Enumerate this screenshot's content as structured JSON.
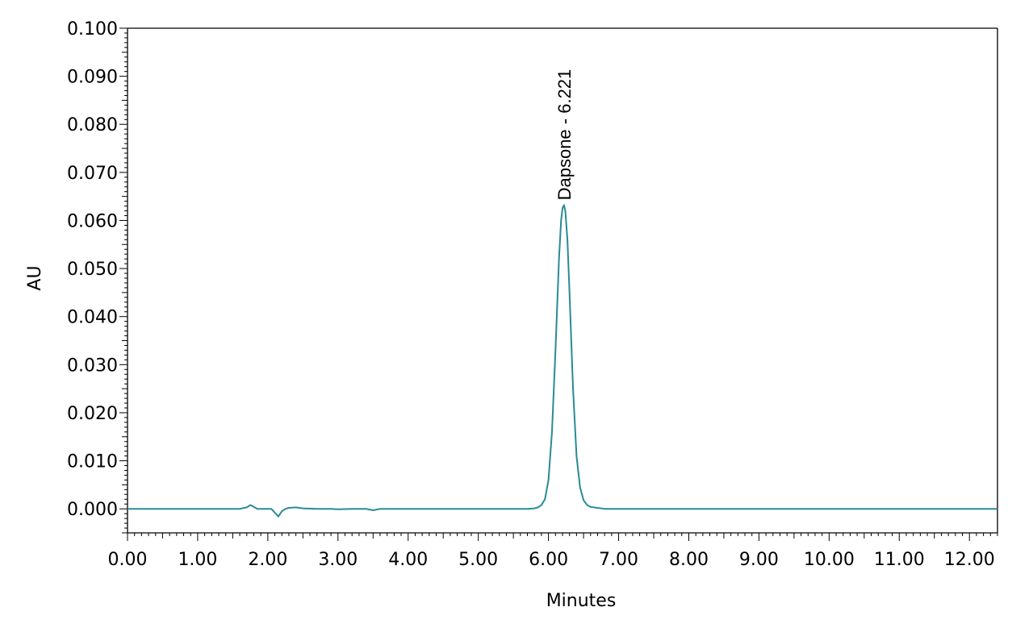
{
  "chart_data": {
    "type": "line",
    "title": "",
    "xlabel": "Minutes",
    "ylabel": "AU",
    "xlim": [
      0.0,
      12.4
    ],
    "ylim": [
      -0.005,
      0.1
    ],
    "grid": false,
    "x_ticks": [
      "0.00",
      "1.00",
      "2.00",
      "3.00",
      "4.00",
      "5.00",
      "6.00",
      "7.00",
      "8.00",
      "9.00",
      "10.00",
      "11.00",
      "12.00"
    ],
    "y_ticks": [
      "0.000",
      "0.010",
      "0.020",
      "0.030",
      "0.040",
      "0.050",
      "0.060",
      "0.070",
      "0.080",
      "0.090",
      "0.100"
    ],
    "line_color": "#2a8a96",
    "series": [
      {
        "x": [
          0.0,
          1.6,
          1.7,
          1.75,
          1.8,
          1.85,
          1.95,
          2.05,
          2.1,
          2.15,
          2.2,
          2.25,
          2.3,
          2.4,
          2.5,
          2.7,
          2.9,
          3.0,
          3.2,
          3.4,
          3.5,
          3.6,
          3.8,
          4.0,
          5.0,
          5.7,
          5.8,
          5.85,
          5.9,
          5.95,
          6.0,
          6.05,
          6.1,
          6.15,
          6.18,
          6.2,
          6.221,
          6.24,
          6.27,
          6.3,
          6.35,
          6.4,
          6.45,
          6.5,
          6.55,
          6.6,
          6.7,
          6.8,
          7.0,
          12.4
        ],
        "y": [
          0.0,
          0.0,
          0.0003,
          0.0008,
          0.0004,
          0.0,
          0.0,
          0.0,
          -0.0008,
          -0.0016,
          -0.0005,
          0.0,
          0.0002,
          0.0003,
          0.0001,
          0.0,
          0.0,
          -0.0001,
          0.0,
          0.0,
          -0.0003,
          0.0,
          0.0,
          0.0,
          0.0,
          0.0,
          0.0001,
          0.0003,
          0.0008,
          0.002,
          0.006,
          0.016,
          0.033,
          0.052,
          0.06,
          0.0625,
          0.0632,
          0.062,
          0.056,
          0.045,
          0.025,
          0.011,
          0.0045,
          0.0018,
          0.0008,
          0.0004,
          0.0002,
          0.0,
          0.0,
          0.0
        ]
      }
    ],
    "annotations": [
      {
        "text": "Dapsone - 6.221",
        "x": 6.221,
        "y": 0.0632
      }
    ]
  }
}
